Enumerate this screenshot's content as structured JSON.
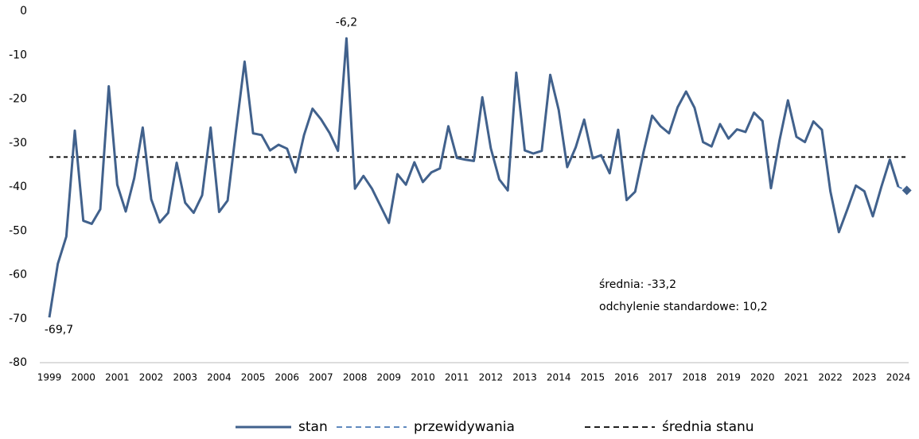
{
  "chart_data": {
    "type": "line",
    "categories": [
      "1999",
      null,
      null,
      null,
      "2000",
      null,
      null,
      null,
      "2001",
      null,
      null,
      null,
      "2002",
      null,
      null,
      null,
      "2003",
      null,
      null,
      null,
      "2004",
      null,
      null,
      null,
      "2005",
      null,
      null,
      null,
      "2006",
      null,
      null,
      null,
      "2007",
      null,
      null,
      null,
      "2008",
      null,
      null,
      null,
      "2009",
      null,
      null,
      null,
      "2010",
      null,
      null,
      null,
      "2011",
      null,
      null,
      null,
      "2012",
      null,
      null,
      null,
      "2013",
      null,
      null,
      null,
      "2014",
      null,
      null,
      null,
      "2015",
      null,
      null,
      null,
      "2016",
      null,
      null,
      null,
      "2017",
      null,
      null,
      null,
      "2018",
      null,
      null,
      null,
      "2019",
      null,
      null,
      null,
      "2020",
      null,
      null,
      null,
      "2021",
      null,
      null,
      null,
      "2022",
      null,
      null,
      null,
      "2023",
      null,
      null,
      null,
      "2024",
      null
    ],
    "series": [
      {
        "name": "stan",
        "color": "#41618c",
        "style": "solid",
        "values": [
          -69.7,
          -57.5,
          -51.3,
          -27.2,
          -47.7,
          -48.4,
          -45.1,
          -17.1,
          -39.5,
          -45.6,
          -38,
          -26.5,
          -42.8,
          -48.1,
          -45.9,
          -34.5,
          -43.6,
          -45.9,
          -41.9,
          -26.5,
          -45.7,
          -43.1,
          -27,
          -11.5,
          -27.8,
          -28.2,
          -31.7,
          -30.4,
          -31.3,
          -36.7,
          -28.2,
          -22.2,
          -24.6,
          -27.7,
          -31.8,
          -6.2,
          -40.4,
          -37.5,
          -40.4,
          -44.3,
          -48.2,
          -37.1,
          -39.5,
          -34.4,
          -38.9,
          -36.7,
          -35.8,
          -26.2,
          -33.4,
          -33.8,
          -34.1,
          -19.6,
          -31.2,
          -38.3,
          -40.8,
          -14,
          -31.7,
          -32.4,
          -31.8,
          -14.5,
          -22.5,
          -35.5,
          -31,
          -24.7,
          -33.5,
          -32.8,
          -36.9,
          -27,
          -43,
          -41.1,
          -32,
          -23.8,
          -26.2,
          -27.8,
          -21.9,
          -18.3,
          -22,
          -29.8,
          -30.8,
          -25.7,
          -29,
          -26.9,
          -27.5,
          -23.1,
          -25,
          -40.3,
          -29.5,
          -20.3,
          -28.6,
          -29.8,
          -25.1,
          -27,
          -41,
          -50.3,
          -45.1,
          -39.7,
          -41,
          -46.7,
          -40,
          -33.8,
          -40,
          null
        ],
        "value_labels": [
          "-69,7",
          null,
          null,
          null,
          null,
          null,
          null,
          null,
          null,
          null,
          null,
          null,
          null,
          null,
          null,
          null,
          null,
          null,
          null,
          null,
          null,
          null,
          null,
          null,
          null,
          null,
          null,
          null,
          null,
          null,
          null,
          null,
          null,
          null,
          null,
          "-6,2",
          null,
          null,
          null,
          null,
          null,
          null,
          null,
          null,
          null,
          null,
          null,
          null,
          null,
          null,
          null,
          null,
          null,
          null,
          null,
          null,
          null,
          null,
          null,
          null,
          null,
          null,
          null,
          null,
          null,
          null,
          null,
          null,
          null,
          null,
          null,
          null,
          null,
          null,
          null,
          null,
          null,
          null,
          null,
          null,
          null,
          null,
          null,
          null,
          null,
          null,
          null,
          null,
          null,
          null,
          null,
          null,
          null,
          null,
          null,
          null,
          null,
          null,
          null,
          null,
          null,
          null
        ]
      },
      {
        "name": "przewidywania",
        "color": "#4a7ab5",
        "style": "dashed",
        "marker": "diamond",
        "values": [
          null,
          null,
          null,
          null,
          null,
          null,
          null,
          null,
          null,
          null,
          null,
          null,
          null,
          null,
          null,
          null,
          null,
          null,
          null,
          null,
          null,
          null,
          null,
          null,
          null,
          null,
          null,
          null,
          null,
          null,
          null,
          null,
          null,
          null,
          null,
          null,
          null,
          null,
          null,
          null,
          null,
          null,
          null,
          null,
          null,
          null,
          null,
          null,
          null,
          null,
          null,
          null,
          null,
          null,
          null,
          null,
          null,
          null,
          null,
          null,
          null,
          null,
          null,
          null,
          null,
          null,
          null,
          null,
          null,
          null,
          null,
          null,
          null,
          null,
          null,
          null,
          null,
          null,
          null,
          null,
          null,
          null,
          null,
          null,
          null,
          null,
          null,
          null,
          null,
          null,
          null,
          null,
          null,
          null,
          null,
          null,
          null,
          null,
          null,
          null,
          -40,
          -40.8
        ]
      },
      {
        "name": "średnia stanu",
        "color": "#000000",
        "style": "dashed",
        "values": [
          -33.2,
          -33.2,
          -33.2,
          -33.2,
          -33.2,
          -33.2,
          -33.2,
          -33.2,
          -33.2,
          -33.2,
          -33.2,
          -33.2,
          -33.2,
          -33.2,
          -33.2,
          -33.2,
          -33.2,
          -33.2,
          -33.2,
          -33.2,
          -33.2,
          -33.2,
          -33.2,
          -33.2,
          -33.2,
          -33.2,
          -33.2,
          -33.2,
          -33.2,
          -33.2,
          -33.2,
          -33.2,
          -33.2,
          -33.2,
          -33.2,
          -33.2,
          -33.2,
          -33.2,
          -33.2,
          -33.2,
          -33.2,
          -33.2,
          -33.2,
          -33.2,
          -33.2,
          -33.2,
          -33.2,
          -33.2,
          -33.2,
          -33.2,
          -33.2,
          -33.2,
          -33.2,
          -33.2,
          -33.2,
          -33.2,
          -33.2,
          -33.2,
          -33.2,
          -33.2,
          -33.2,
          -33.2,
          -33.2,
          -33.2,
          -33.2,
          -33.2,
          -33.2,
          -33.2,
          -33.2,
          -33.2,
          -33.2,
          -33.2,
          -33.2,
          -33.2,
          -33.2,
          -33.2,
          -33.2,
          -33.2,
          -33.2,
          -33.2,
          -33.2,
          -33.2,
          -33.2,
          -33.2,
          -33.2,
          -33.2,
          -33.2,
          -33.2,
          -33.2,
          -33.2,
          -33.2,
          -33.2,
          -33.2,
          -33.2,
          -33.2,
          -33.2,
          -33.2,
          -33.2,
          -33.2,
          -33.2,
          -33.2,
          -33.2
        ]
      }
    ],
    "annotations": [
      "średnia: -33,2",
      "odchylenie standardowe: 10,2"
    ],
    "ylim": [
      -80,
      0
    ],
    "yticks": [
      0,
      -10,
      -20,
      -30,
      -40,
      -50,
      -60,
      -70,
      -80
    ],
    "grid": false,
    "legend": "bottom"
  }
}
